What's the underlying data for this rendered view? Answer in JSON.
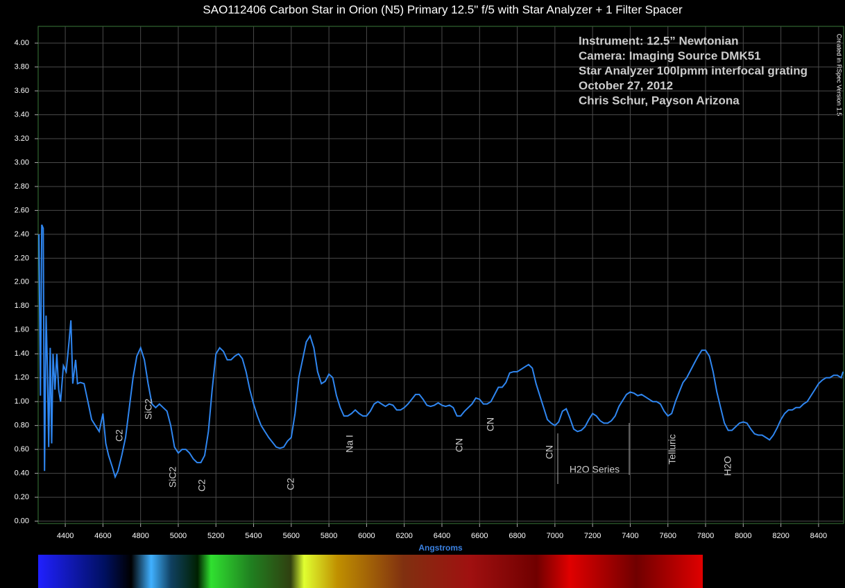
{
  "chart_data": {
    "type": "line",
    "title": "SAO112406 Carbon Star in Orion (N5)  Primary 12.5\" f/5 with Star Analyzer + 1 Filter Spacer",
    "x_label": "Angstroms",
    "credit": "Created in RSpec Version 1.5",
    "notes": [
      "Instrument:  12.5” Newtonian",
      "Camera:  Imaging Source DMK51",
      "Star Analyzer 100lpmm interfocal grating",
      "October 27, 2012",
      "Chris Schur, Payson Arizona"
    ],
    "annotations": [
      "C2",
      "SiC2",
      "SiC2",
      "C2",
      "C2",
      "Na I",
      "CN",
      "CN",
      "CN",
      "H2O Series",
      "Telluric",
      "H2O"
    ],
    "color": "#2f86f0",
    "grid": true,
    "xlim": [
      4256,
      8533
    ],
    "ylim": [
      -0.02,
      4.14
    ],
    "xticks": [
      4400,
      4600,
      4800,
      5000,
      5200,
      5400,
      5600,
      5800,
      6000,
      6200,
      6400,
      6600,
      6800,
      7000,
      7200,
      7400,
      7600,
      7800,
      8000,
      8200,
      8400
    ],
    "yticks": [
      {
        "value": 0,
        "label": "0.00"
      },
      {
        "value": 0.2,
        "label": "0.20"
      },
      {
        "value": 0.4,
        "label": "0.40"
      },
      {
        "value": 0.6,
        "label": "0.60"
      },
      {
        "value": 0.8,
        "label": "0.80"
      },
      {
        "value": 1,
        "label": "1.00"
      },
      {
        "value": 1.2,
        "label": "1.20"
      },
      {
        "value": 1.4,
        "label": "1.40"
      },
      {
        "value": 1.6,
        "label": "1.60"
      },
      {
        "value": 1.8,
        "label": "1.80"
      },
      {
        "value": 2,
        "label": "2.00"
      },
      {
        "value": 2.2,
        "label": "2.20"
      },
      {
        "value": 2.4,
        "label": "2.40"
      },
      {
        "value": 2.6,
        "label": "2.60"
      },
      {
        "value": 2.8,
        "label": "2.80"
      },
      {
        "value": 3,
        "label": "3.00"
      },
      {
        "value": 3.2,
        "label": "3.20"
      },
      {
        "value": 3.4,
        "label": "3.40"
      },
      {
        "value": 3.6,
        "label": "3.60"
      },
      {
        "value": 3.8,
        "label": "3.80"
      },
      {
        "value": 4,
        "label": "4.00"
      }
    ],
    "x": [
      4260,
      4268,
      4275,
      4283,
      4290,
      4298,
      4305,
      4312,
      4320,
      4328,
      4335,
      4345,
      4355,
      4365,
      4375,
      4390,
      4405,
      4420,
      4430,
      4440,
      4455,
      4465,
      4480,
      4500,
      4520,
      4540,
      4560,
      4580,
      4600,
      4615,
      4630,
      4650,
      4665,
      4680,
      4700,
      4720,
      4740,
      4760,
      4780,
      4800,
      4820,
      4840,
      4860,
      4880,
      4900,
      4920,
      4940,
      4960,
      4980,
      5000,
      5020,
      5040,
      5060,
      5080,
      5100,
      5120,
      5140,
      5160,
      5180,
      5200,
      5220,
      5240,
      5260,
      5280,
      5300,
      5320,
      5340,
      5360,
      5380,
      5400,
      5420,
      5440,
      5460,
      5480,
      5500,
      5520,
      5540,
      5560,
      5580,
      5600,
      5620,
      5640,
      5660,
      5680,
      5700,
      5720,
      5740,
      5760,
      5780,
      5800,
      5820,
      5840,
      5860,
      5880,
      5900,
      5920,
      5940,
      5960,
      5980,
      6000,
      6020,
      6040,
      6060,
      6080,
      6100,
      6120,
      6140,
      6160,
      6180,
      6200,
      6220,
      6240,
      6260,
      6280,
      6300,
      6320,
      6340,
      6360,
      6380,
      6400,
      6420,
      6440,
      6460,
      6480,
      6500,
      6520,
      6540,
      6560,
      6580,
      6600,
      6620,
      6640,
      6660,
      6680,
      6700,
      6720,
      6740,
      6760,
      6780,
      6800,
      6820,
      6840,
      6860,
      6880,
      6900,
      6920,
      6940,
      6960,
      6980,
      7000,
      7020,
      7040,
      7060,
      7080,
      7100,
      7120,
      7140,
      7160,
      7180,
      7200,
      7220,
      7240,
      7260,
      7280,
      7300,
      7320,
      7340,
      7360,
      7380,
      7400,
      7420,
      7440,
      7460,
      7480,
      7500,
      7520,
      7540,
      7560,
      7580,
      7600,
      7620,
      7640,
      7660,
      7680,
      7700,
      7720,
      7740,
      7760,
      7780,
      7800,
      7820,
      7840,
      7860,
      7880,
      7900,
      7920,
      7940,
      7960,
      7980,
      8000,
      8020,
      8040,
      8060,
      8080,
      8100,
      8120,
      8140,
      8160,
      8180,
      8200,
      8220,
      8240,
      8260,
      8280,
      8300,
      8320,
      8340,
      8360,
      8380,
      8400,
      8420,
      8440,
      8460,
      8480,
      8500,
      8520,
      8530
    ],
    "values": [
      2.4,
      1.05,
      2.48,
      2.45,
      0.42,
      1.72,
      1.3,
      0.62,
      1.45,
      0.65,
      1.4,
      1.1,
      1.4,
      1.1,
      1.0,
      1.3,
      1.25,
      1.5,
      1.68,
      1.15,
      1.35,
      1.15,
      1.16,
      1.15,
      1.0,
      0.85,
      0.8,
      0.75,
      0.9,
      0.65,
      0.55,
      0.45,
      0.37,
      0.42,
      0.55,
      0.7,
      0.95,
      1.2,
      1.38,
      1.45,
      1.35,
      1.15,
      0.98,
      0.95,
      0.98,
      0.95,
      0.92,
      0.8,
      0.62,
      0.57,
      0.6,
      0.6,
      0.57,
      0.52,
      0.49,
      0.49,
      0.55,
      0.75,
      1.1,
      1.4,
      1.45,
      1.42,
      1.35,
      1.35,
      1.38,
      1.4,
      1.36,
      1.25,
      1.1,
      0.98,
      0.88,
      0.8,
      0.75,
      0.7,
      0.66,
      0.62,
      0.61,
      0.62,
      0.67,
      0.7,
      0.9,
      1.2,
      1.35,
      1.5,
      1.55,
      1.45,
      1.25,
      1.15,
      1.17,
      1.23,
      1.2,
      1.05,
      0.95,
      0.88,
      0.88,
      0.9,
      0.93,
      0.9,
      0.88,
      0.88,
      0.92,
      0.98,
      1.0,
      0.98,
      0.96,
      0.98,
      0.97,
      0.93,
      0.93,
      0.95,
      0.98,
      1.02,
      1.06,
      1.06,
      1.02,
      0.97,
      0.96,
      0.97,
      0.99,
      0.97,
      0.96,
      0.97,
      0.95,
      0.88,
      0.88,
      0.92,
      0.95,
      0.98,
      1.03,
      1.02,
      0.98,
      0.98,
      1.0,
      1.06,
      1.12,
      1.12,
      1.16,
      1.24,
      1.25,
      1.25,
      1.27,
      1.29,
      1.31,
      1.28,
      1.15,
      1.05,
      0.95,
      0.85,
      0.82,
      0.8,
      0.83,
      0.92,
      0.94,
      0.86,
      0.77,
      0.75,
      0.76,
      0.79,
      0.85,
      0.9,
      0.88,
      0.84,
      0.82,
      0.82,
      0.84,
      0.88,
      0.96,
      1.01,
      1.06,
      1.08,
      1.07,
      1.05,
      1.06,
      1.04,
      1.02,
      1.0,
      1.0,
      0.98,
      0.92,
      0.88,
      0.9,
      1.0,
      1.08,
      1.16,
      1.2,
      1.26,
      1.32,
      1.38,
      1.43,
      1.43,
      1.38,
      1.25,
      1.08,
      0.95,
      0.82,
      0.76,
      0.76,
      0.79,
      0.82,
      0.83,
      0.82,
      0.77,
      0.73,
      0.72,
      0.72,
      0.7,
      0.68,
      0.72,
      0.78,
      0.85,
      0.9,
      0.93,
      0.93,
      0.95,
      0.95,
      0.98,
      1.0,
      1.05,
      1.1,
      1.15,
      1.18,
      1.2,
      1.2,
      1.22,
      1.22,
      1.2,
      1.25
    ]
  }
}
